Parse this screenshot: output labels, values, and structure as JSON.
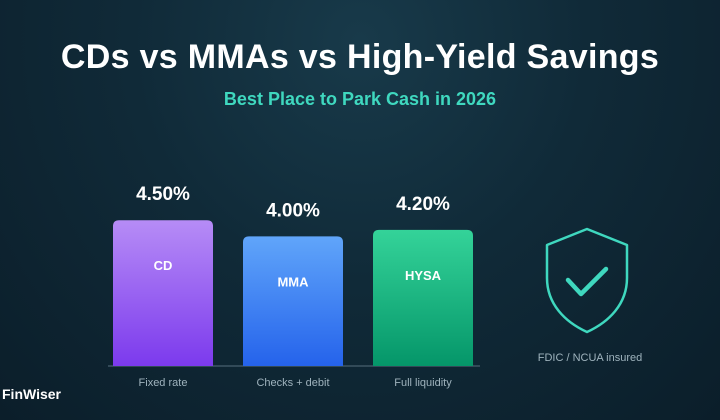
{
  "header": {
    "title": "CDs vs MMAs vs High-Yield Savings",
    "subtitle": "Best Place to Park Cash in 2026"
  },
  "chart_data": {
    "type": "bar",
    "title": "CDs vs MMAs vs High-Yield Savings",
    "subtitle": "Best Place to Park Cash in 2026",
    "categories": [
      "CD",
      "MMA",
      "HYSA"
    ],
    "values": [
      4.5,
      4.0,
      4.2
    ],
    "value_labels": [
      "4.50%",
      "4.00%",
      "4.20%"
    ],
    "descriptions": [
      "Fixed rate",
      "Checks + debit",
      "Full liquidity"
    ],
    "colors": [
      [
        "#b68cf6",
        "#7c3aed"
      ],
      [
        "#60a5fa",
        "#2563eb"
      ],
      [
        "#34d399",
        "#059669"
      ]
    ],
    "xlabel": "",
    "ylabel": "",
    "grid": false,
    "legend": "none"
  },
  "badge": {
    "icon": "shield-check-icon",
    "caption": "FDIC / NCUA insured",
    "color": "#3fd8bf"
  },
  "brand": {
    "name": "FinWiser"
  }
}
